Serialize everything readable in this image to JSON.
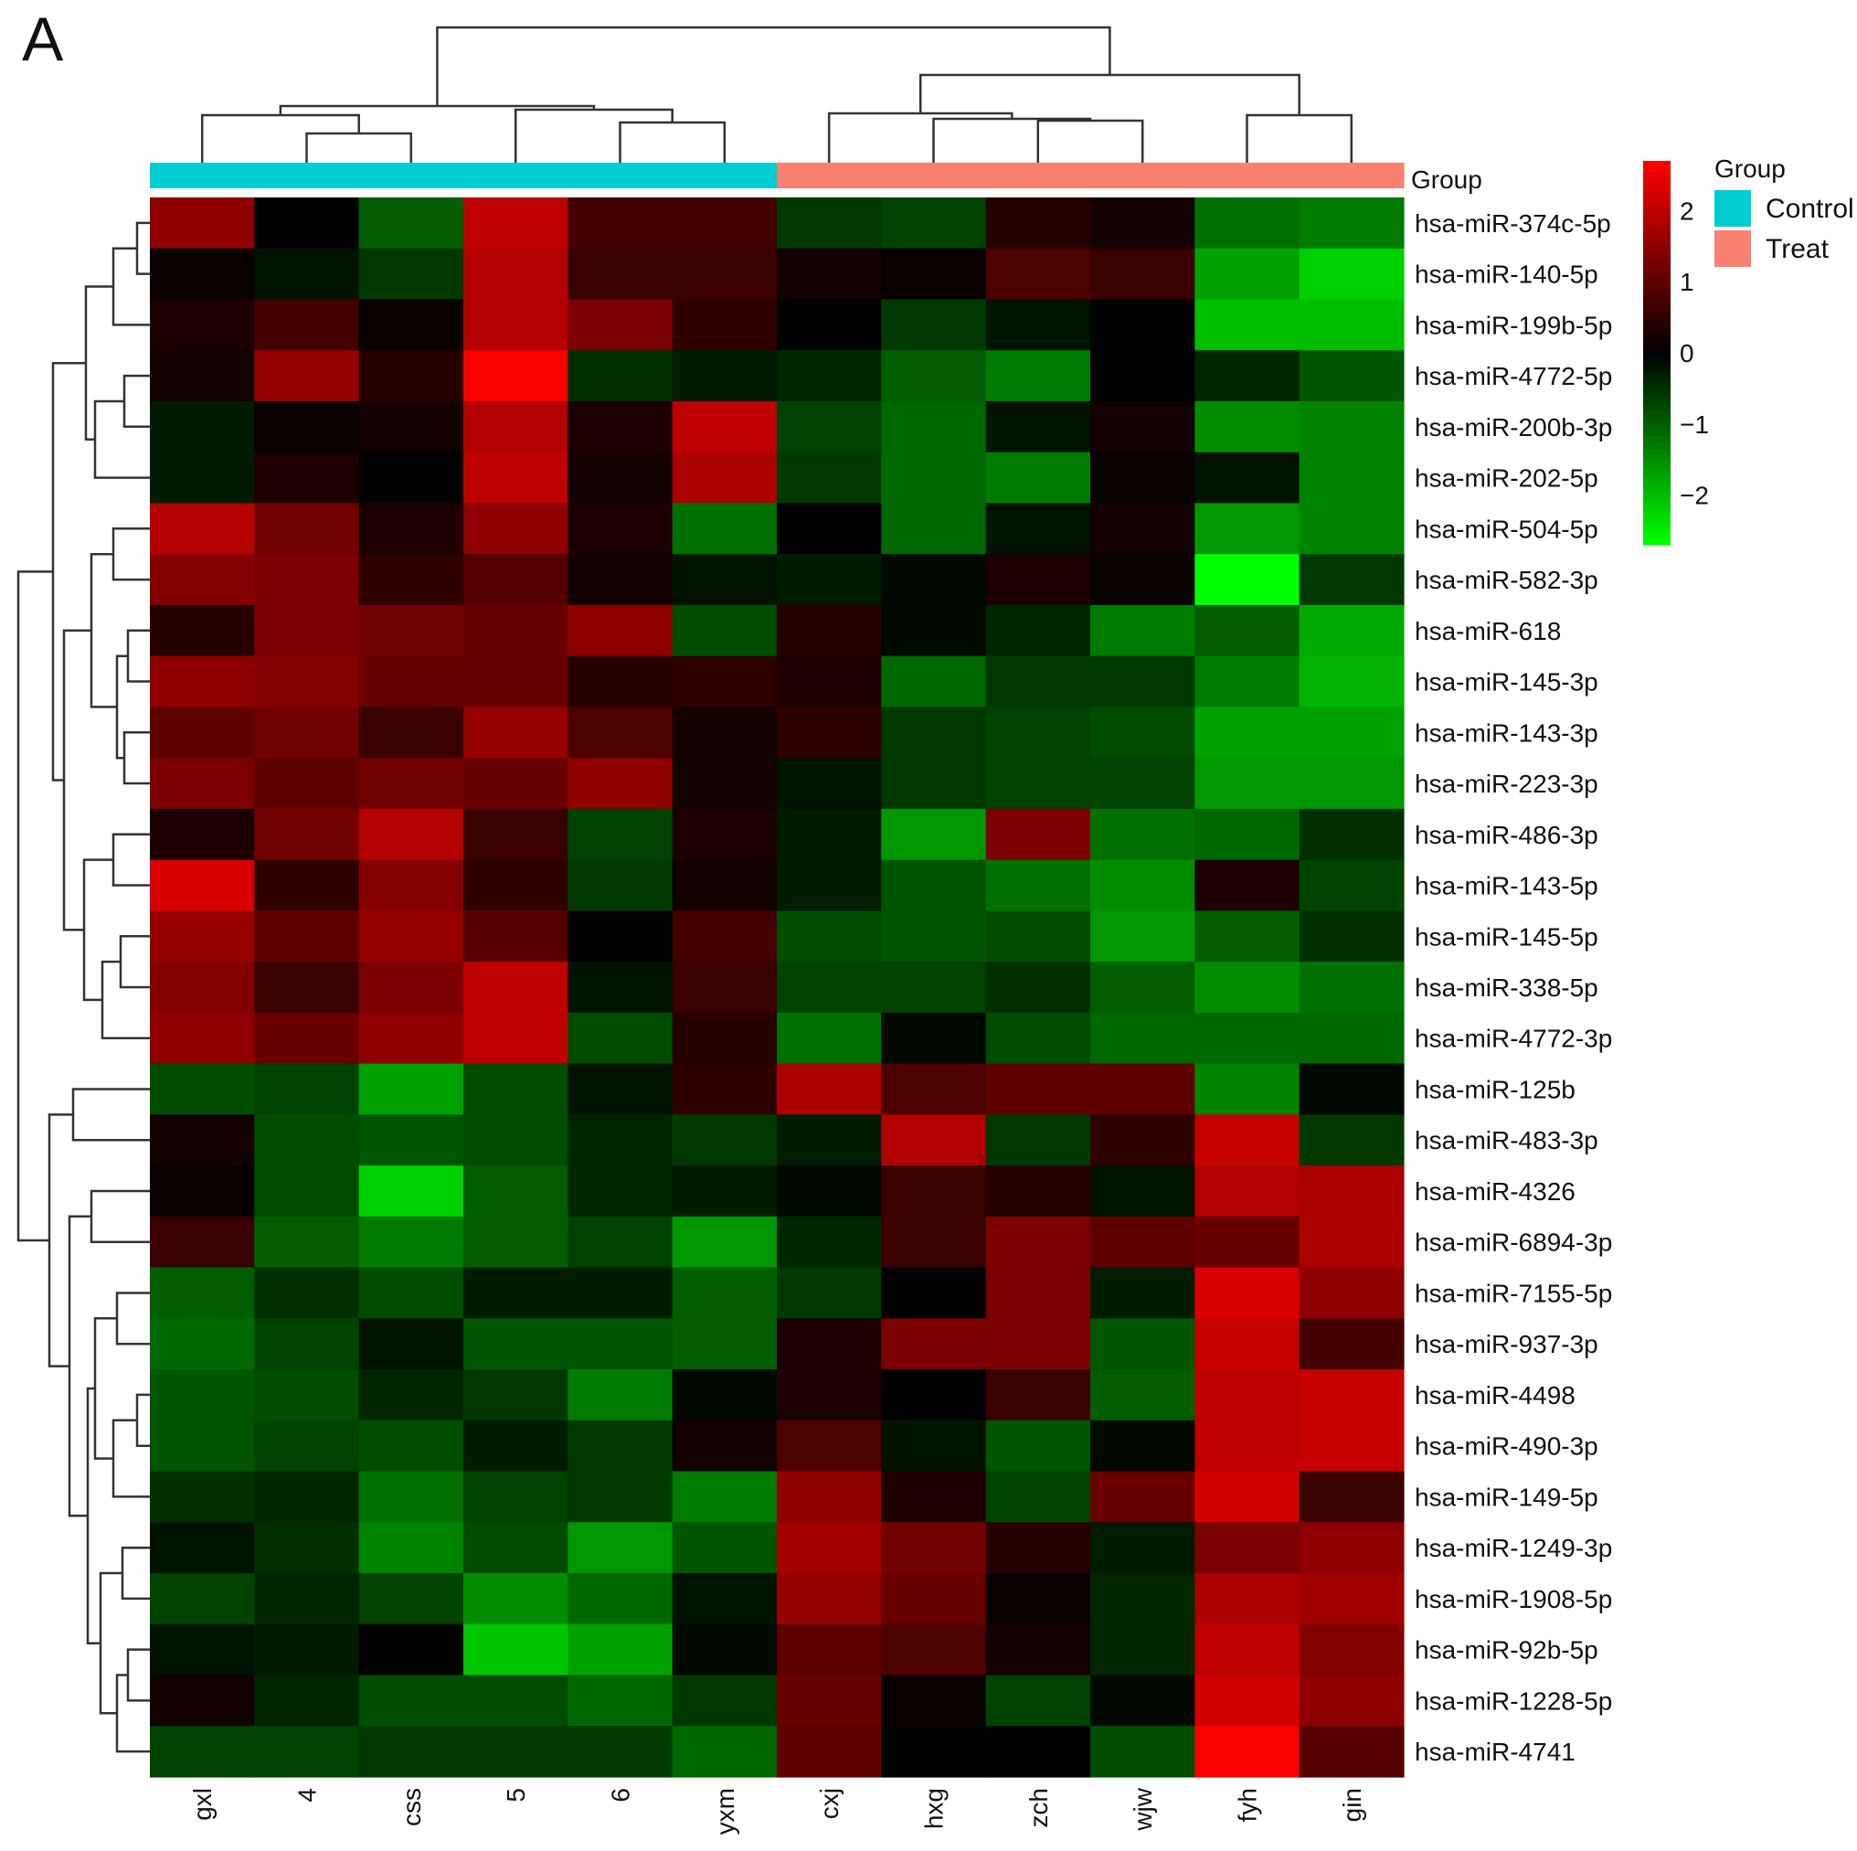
{
  "panel_label": "A",
  "chart_data": {
    "type": "heatmap",
    "title": "",
    "columns": [
      "gxl",
      "4",
      "css",
      "5",
      "6",
      "yxm",
      "cxj",
      "hxg",
      "zch",
      "wjw",
      "fyh",
      "gin"
    ],
    "column_groups": [
      "Control",
      "Control",
      "Control",
      "Control",
      "Control",
      "Control",
      "Treat",
      "Treat",
      "Treat",
      "Treat",
      "Treat",
      "Treat"
    ],
    "rows": [
      "hsa-miR-374c-5p",
      "hsa-miR-140-5p",
      "hsa-miR-199b-5p",
      "hsa-miR-4772-5p",
      "hsa-miR-200b-3p",
      "hsa-miR-202-5p",
      "hsa-miR-504-5p",
      "hsa-miR-582-3p",
      "hsa-miR-618",
      "hsa-miR-145-3p",
      "hsa-miR-143-3p",
      "hsa-miR-223-3p",
      "hsa-miR-486-3p",
      "hsa-miR-143-5p",
      "hsa-miR-145-5p",
      "hsa-miR-338-5p",
      "hsa-miR-4772-3p",
      "hsa-miR-125b",
      "hsa-miR-483-3p",
      "hsa-miR-4326",
      "hsa-miR-6894-3p",
      "hsa-miR-7155-5p",
      "hsa-miR-937-3p",
      "hsa-miR-4498",
      "hsa-miR-490-3p",
      "hsa-miR-149-5p",
      "hsa-miR-1249-3p",
      "hsa-miR-1908-5p",
      "hsa-miR-92b-5p",
      "hsa-miR-1228-5p",
      "hsa-miR-4741"
    ],
    "values": [
      [
        1.5,
        0.0,
        -1.0,
        2.0,
        0.7,
        0.7,
        -0.6,
        -0.7,
        0.4,
        0.2,
        -1.2,
        -1.3
      ],
      [
        0.1,
        -0.2,
        -0.6,
        1.9,
        0.6,
        0.6,
        0.2,
        0.1,
        0.8,
        0.6,
        -1.7,
        -2.2
      ],
      [
        0.3,
        0.7,
        0.1,
        1.9,
        1.3,
        0.5,
        0.0,
        -0.6,
        -0.2,
        0.0,
        -2.0,
        -2.0
      ],
      [
        0.2,
        1.6,
        0.4,
        2.6,
        -0.5,
        -0.3,
        -0.4,
        -1.0,
        -1.3,
        0.0,
        -0.4,
        -0.9
      ],
      [
        -0.3,
        0.1,
        0.2,
        1.9,
        0.3,
        2.0,
        -0.7,
        -1.1,
        -0.2,
        0.2,
        -1.5,
        -1.4
      ],
      [
        -0.3,
        0.3,
        0.0,
        2.0,
        0.2,
        1.8,
        -0.6,
        -1.1,
        -1.3,
        0.1,
        -0.2,
        -1.4
      ],
      [
        1.9,
        1.2,
        0.3,
        1.5,
        0.3,
        -1.2,
        0.0,
        -1.1,
        -0.2,
        0.2,
        -1.6,
        -1.4
      ],
      [
        1.4,
        1.3,
        0.5,
        0.9,
        0.2,
        -0.2,
        -0.3,
        -0.1,
        0.3,
        0.1,
        -2.7,
        -0.6
      ],
      [
        0.4,
        1.3,
        1.2,
        1.1,
        1.5,
        -0.8,
        0.4,
        -0.1,
        -0.4,
        -1.3,
        -1.0,
        -1.8
      ],
      [
        1.5,
        1.4,
        1.1,
        1.1,
        0.4,
        0.5,
        0.3,
        -1.1,
        -0.6,
        -0.6,
        -1.3,
        -1.9
      ],
      [
        1.0,
        1.2,
        0.6,
        1.6,
        0.8,
        0.2,
        0.5,
        -0.6,
        -0.7,
        -0.8,
        -1.7,
        -1.7
      ],
      [
        1.3,
        1.0,
        1.2,
        1.1,
        1.5,
        0.2,
        -0.2,
        -0.6,
        -0.7,
        -0.7,
        -1.6,
        -1.6
      ],
      [
        0.3,
        1.2,
        1.9,
        0.6,
        -0.7,
        0.3,
        -0.3,
        -1.6,
        1.3,
        -1.2,
        -1.1,
        -0.5
      ],
      [
        2.3,
        0.5,
        1.4,
        0.5,
        -0.6,
        0.2,
        -0.3,
        -0.9,
        -1.2,
        -1.5,
        0.3,
        -0.7
      ],
      [
        1.6,
        1.0,
        1.6,
        0.9,
        0.0,
        0.7,
        -0.8,
        -0.9,
        -0.8,
        -1.6,
        -1.0,
        -0.5
      ],
      [
        1.4,
        0.6,
        1.3,
        2.0,
        -0.2,
        0.6,
        -0.7,
        -0.7,
        -0.5,
        -1.0,
        -1.5,
        -1.2
      ],
      [
        1.5,
        1.1,
        1.5,
        2.0,
        -0.8,
        0.4,
        -1.2,
        -0.1,
        -0.8,
        -1.1,
        -1.1,
        -1.1
      ],
      [
        -0.8,
        -0.7,
        -1.7,
        -0.8,
        -0.2,
        0.5,
        1.8,
        0.8,
        1.0,
        1.0,
        -1.4,
        -0.1
      ],
      [
        0.2,
        -0.8,
        -0.9,
        -0.8,
        -0.4,
        -0.6,
        -0.3,
        1.9,
        -0.6,
        0.5,
        2.1,
        -0.6
      ],
      [
        0.1,
        -0.8,
        -2.2,
        -1.0,
        -0.4,
        -0.3,
        -0.1,
        0.6,
        0.4,
        -0.2,
        1.9,
        1.8
      ],
      [
        0.6,
        -1.0,
        -1.3,
        -1.0,
        -0.7,
        -1.6,
        -0.4,
        0.6,
        1.3,
        1.0,
        1.1,
        1.8
      ],
      [
        -1.0,
        -0.5,
        -0.8,
        -0.3,
        -0.3,
        -1.0,
        -0.6,
        0.0,
        1.3,
        -0.3,
        2.3,
        1.5
      ],
      [
        -1.1,
        -0.7,
        -0.2,
        -0.9,
        -0.9,
        -1.0,
        0.3,
        1.3,
        1.3,
        -0.9,
        2.1,
        0.7
      ],
      [
        -0.9,
        -0.8,
        -0.4,
        -0.6,
        -1.3,
        -0.1,
        0.3,
        0.0,
        0.6,
        -1.0,
        2.0,
        2.1
      ],
      [
        -0.9,
        -0.7,
        -0.8,
        -0.3,
        -0.6,
        0.2,
        0.8,
        -0.2,
        -0.9,
        -0.1,
        2.0,
        2.1
      ],
      [
        -0.5,
        -0.4,
        -1.2,
        -0.7,
        -0.6,
        -1.3,
        1.5,
        0.3,
        -0.7,
        1.1,
        2.2,
        0.6
      ],
      [
        -0.2,
        -0.5,
        -1.4,
        -0.8,
        -1.6,
        -0.9,
        1.7,
        1.2,
        0.4,
        -0.3,
        1.3,
        1.5
      ],
      [
        -0.7,
        -0.4,
        -0.7,
        -1.5,
        -1.1,
        -0.2,
        1.6,
        1.1,
        0.1,
        -0.4,
        1.8,
        1.7
      ],
      [
        -0.2,
        -0.3,
        0.0,
        -2.1,
        -1.7,
        -0.1,
        1.0,
        0.8,
        0.2,
        -0.4,
        2.0,
        1.4
      ],
      [
        0.2,
        -0.4,
        -0.8,
        -0.8,
        -1.1,
        -0.6,
        1.1,
        0.1,
        -0.7,
        -0.1,
        2.2,
        1.5
      ],
      [
        -0.7,
        -0.7,
        -0.6,
        -0.6,
        -0.6,
        -1.1,
        1.0,
        0.0,
        0.0,
        -0.8,
        2.6,
        0.9
      ]
    ],
    "colorbar": {
      "min": -2.7,
      "max": 2.7,
      "ticks": [
        2,
        1,
        0,
        -1,
        -2
      ],
      "tick_labels": [
        "2",
        "1",
        "0",
        "−1",
        "−2"
      ],
      "colors": [
        "#00ff00",
        "#000000",
        "#ff0000"
      ]
    },
    "group_annotation_label": "Group",
    "legend": {
      "title": "Group",
      "items": [
        {
          "label": "Control",
          "color": "#00ced1"
        },
        {
          "label": "Treat",
          "color": "#fa8072"
        }
      ]
    },
    "column_dendrogram": true,
    "row_dendrogram": true
  }
}
